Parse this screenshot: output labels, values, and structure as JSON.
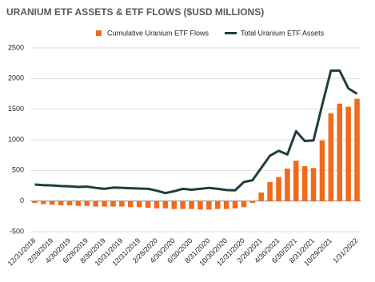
{
  "chart_data": {
    "type": "bar-line",
    "title": "URANIUM ETF ASSETS & ETF FLOWS ($USD MILLIONS)",
    "categories": [
      "12/31/2018",
      null,
      "2/28/2019",
      null,
      "4/30/2019",
      null,
      "6/28/2019",
      null,
      "8/30/2019",
      null,
      "10/31/2019",
      null,
      "12/31/2019",
      null,
      "2/28/2020",
      null,
      "4/30/2020",
      null,
      "6/30/2020",
      null,
      "8/31/2020",
      null,
      "10/30/2020",
      null,
      "12/31/2020",
      null,
      "2/26/2021",
      null,
      "4/30/2021",
      null,
      "6/30/2021",
      null,
      "8/31/2021",
      null,
      "10/29/2021",
      null,
      null,
      "1/31/2022"
    ],
    "series": [
      {
        "name": "Cumulative Uranium ETF Flows",
        "color": "#f26a1b",
        "kind": "bar",
        "values": [
          -30,
          -50,
          -60,
          -70,
          -70,
          -80,
          -80,
          -90,
          -90,
          -90,
          -90,
          -100,
          -100,
          -110,
          -120,
          -120,
          -130,
          -130,
          -130,
          -140,
          -140,
          -130,
          -130,
          -120,
          -100,
          -30,
          140,
          310,
          390,
          530,
          660,
          570,
          540,
          990,
          1430,
          1590,
          1540,
          1670
        ]
      },
      {
        "name": "Total Uranium ETF Assets",
        "color": "#1f3d40",
        "kind": "line",
        "values": [
          270,
          260,
          255,
          245,
          240,
          230,
          235,
          215,
          200,
          220,
          215,
          210,
          205,
          200,
          170,
          130,
          160,
          200,
          185,
          200,
          215,
          200,
          180,
          175,
          310,
          340,
          540,
          740,
          820,
          760,
          1140,
          980,
          990,
          1570,
          2130,
          2130,
          1840,
          1750
        ]
      }
    ],
    "ylim": [
      -500,
      2500
    ],
    "yticks": [
      -500,
      0,
      500,
      1000,
      1500,
      2000,
      2500
    ],
    "grid": true
  }
}
